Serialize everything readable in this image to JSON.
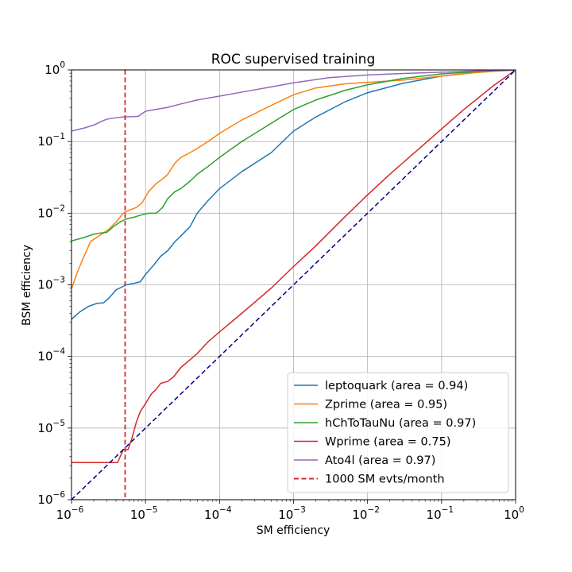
{
  "chart_data": {
    "type": "line",
    "title": "ROC supervised training",
    "xlabel": "SM efficiency",
    "ylabel": "BSM efficiency",
    "xscale": "log",
    "yscale": "log",
    "xlim": [
      1e-06,
      1
    ],
    "ylim": [
      1e-06,
      1
    ],
    "grid": true,
    "legend_position": "lower-right",
    "xticks": [
      {
        "base": "10",
        "exp": "−6",
        "value": 1e-06
      },
      {
        "base": "10",
        "exp": "−5",
        "value": 1e-05
      },
      {
        "base": "10",
        "exp": "−4",
        "value": 0.0001
      },
      {
        "base": "10",
        "exp": "−3",
        "value": 0.001
      },
      {
        "base": "10",
        "exp": "−2",
        "value": 0.01
      },
      {
        "base": "10",
        "exp": "−1",
        "value": 0.1
      },
      {
        "base": "10",
        "exp": "0",
        "value": 1
      }
    ],
    "yticks": [
      {
        "base": "10",
        "exp": "−6",
        "value": 1e-06
      },
      {
        "base": "10",
        "exp": "−5",
        "value": 1e-05
      },
      {
        "base": "10",
        "exp": "−4",
        "value": 0.0001
      },
      {
        "base": "10",
        "exp": "−3",
        "value": 0.001
      },
      {
        "base": "10",
        "exp": "−2",
        "value": 0.01
      },
      {
        "base": "10",
        "exp": "−1",
        "value": 0.1
      },
      {
        "base": "10",
        "exp": "0",
        "value": 1
      }
    ],
    "series": [
      {
        "name": "leptoquark (area = 0.94)",
        "color": "#1f77b4",
        "style": "solid",
        "points": [
          [
            1e-06,
            0.00033
          ],
          [
            1.3e-06,
            0.00042
          ],
          [
            1.7e-06,
            0.0005
          ],
          [
            2.2e-06,
            0.00055
          ],
          [
            2.7e-06,
            0.00056
          ],
          [
            3.2e-06,
            0.00065
          ],
          [
            4e-06,
            0.00085
          ],
          [
            5e-06,
            0.00095
          ],
          [
            5.5e-06,
            0.001
          ],
          [
            7e-06,
            0.00105
          ],
          [
            8.5e-06,
            0.0011
          ],
          [
            1e-05,
            0.0014
          ],
          [
            1.3e-05,
            0.0019
          ],
          [
            1.6e-05,
            0.0025
          ],
          [
            2e-05,
            0.003
          ],
          [
            2.5e-05,
            0.004
          ],
          [
            3e-05,
            0.0048
          ],
          [
            4e-05,
            0.0065
          ],
          [
            5e-05,
            0.01
          ],
          [
            7e-05,
            0.015
          ],
          [
            0.0001,
            0.022
          ],
          [
            0.0002,
            0.038
          ],
          [
            0.0005,
            0.07
          ],
          [
            0.001,
            0.14
          ],
          [
            0.002,
            0.22
          ],
          [
            0.005,
            0.36
          ],
          [
            0.01,
            0.48
          ],
          [
            0.03,
            0.65
          ],
          [
            0.1,
            0.82
          ],
          [
            0.3,
            0.93
          ],
          [
            1,
            1
          ]
        ]
      },
      {
        "name": "Zprime (area = 0.95)",
        "color": "#ff7f0e",
        "style": "solid",
        "points": [
          [
            1e-06,
            0.00088
          ],
          [
            1.2e-06,
            0.0015
          ],
          [
            1.4e-06,
            0.0022
          ],
          [
            1.6e-06,
            0.003
          ],
          [
            1.8e-06,
            0.004
          ],
          [
            2.2e-06,
            0.0046
          ],
          [
            2.7e-06,
            0.0053
          ],
          [
            3.2e-06,
            0.006
          ],
          [
            4e-06,
            0.0075
          ],
          [
            5e-06,
            0.01
          ],
          [
            6e-06,
            0.011
          ],
          [
            7.5e-06,
            0.012
          ],
          [
            9e-06,
            0.014
          ],
          [
            1.1e-05,
            0.02
          ],
          [
            1.4e-05,
            0.026
          ],
          [
            1.7e-05,
            0.03
          ],
          [
            2e-05,
            0.035
          ],
          [
            2.5e-05,
            0.05
          ],
          [
            3e-05,
            0.06
          ],
          [
            4e-05,
            0.07
          ],
          [
            5e-05,
            0.08
          ],
          [
            7e-05,
            0.1
          ],
          [
            0.0001,
            0.13
          ],
          [
            0.0002,
            0.2
          ],
          [
            0.0005,
            0.32
          ],
          [
            0.001,
            0.45
          ],
          [
            0.002,
            0.56
          ],
          [
            0.005,
            0.64
          ],
          [
            0.01,
            0.67
          ],
          [
            0.03,
            0.72
          ],
          [
            0.1,
            0.82
          ],
          [
            0.3,
            0.92
          ],
          [
            1,
            1
          ]
        ]
      },
      {
        "name": "hChToTauNu (area = 0.97)",
        "color": "#2ca02c",
        "style": "solid",
        "points": [
          [
            1e-06,
            0.0041
          ],
          [
            1.5e-06,
            0.0046
          ],
          [
            2e-06,
            0.0051
          ],
          [
            2.5e-06,
            0.0053
          ],
          [
            3e-06,
            0.0054
          ],
          [
            3.7e-06,
            0.0065
          ],
          [
            4.5e-06,
            0.0075
          ],
          [
            5.5e-06,
            0.0083
          ],
          [
            7e-06,
            0.0088
          ],
          [
            9e-06,
            0.0095
          ],
          [
            1.1e-05,
            0.01
          ],
          [
            1.4e-05,
            0.01
          ],
          [
            1.7e-05,
            0.012
          ],
          [
            2e-05,
            0.016
          ],
          [
            2.5e-05,
            0.02
          ],
          [
            3e-05,
            0.022
          ],
          [
            4e-05,
            0.028
          ],
          [
            5e-05,
            0.035
          ],
          [
            7e-05,
            0.045
          ],
          [
            0.0001,
            0.06
          ],
          [
            0.0002,
            0.1
          ],
          [
            0.0005,
            0.18
          ],
          [
            0.001,
            0.28
          ],
          [
            0.002,
            0.38
          ],
          [
            0.005,
            0.52
          ],
          [
            0.01,
            0.62
          ],
          [
            0.03,
            0.76
          ],
          [
            0.1,
            0.88
          ],
          [
            0.3,
            0.95
          ],
          [
            1,
            1
          ]
        ]
      },
      {
        "name": "Wprime (area = 0.75)",
        "color": "#d62728",
        "style": "solid",
        "points": [
          [
            1e-06,
            3.3e-06
          ],
          [
            2e-06,
            3.3e-06
          ],
          [
            3e-06,
            3.3e-06
          ],
          [
            4.2e-06,
            3.3e-06
          ],
          [
            5e-06,
            5e-06
          ],
          [
            5.8e-06,
            5e-06
          ],
          [
            6.5e-06,
            7e-06
          ],
          [
            7.5e-06,
            1.2e-05
          ],
          [
            8.5e-06,
            1.7e-05
          ],
          [
            1e-05,
            2.2e-05
          ],
          [
            1.2e-05,
            3e-05
          ],
          [
            1.4e-05,
            3.5e-05
          ],
          [
            1.6e-05,
            4.2e-05
          ],
          [
            2e-05,
            4.5e-05
          ],
          [
            2.4e-05,
            5.2e-05
          ],
          [
            3e-05,
            7e-05
          ],
          [
            4e-05,
            9e-05
          ],
          [
            5e-05,
            0.00011
          ],
          [
            7e-05,
            0.00016
          ],
          [
            0.0001,
            0.00022
          ],
          [
            0.0002,
            0.0004
          ],
          [
            0.0005,
            0.0009
          ],
          [
            0.001,
            0.0018
          ],
          [
            0.002,
            0.0035
          ],
          [
            0.005,
            0.009
          ],
          [
            0.01,
            0.018
          ],
          [
            0.02,
            0.035
          ],
          [
            0.05,
            0.08
          ],
          [
            0.1,
            0.15
          ],
          [
            0.2,
            0.28
          ],
          [
            0.5,
            0.6
          ],
          [
            1,
            1
          ]
        ]
      },
      {
        "name": "Ato4l (area = 0.97)",
        "color": "#9467bd",
        "style": "solid",
        "points": [
          [
            1e-06,
            0.14
          ],
          [
            1.5e-06,
            0.155
          ],
          [
            2e-06,
            0.17
          ],
          [
            2.5e-06,
            0.19
          ],
          [
            3e-06,
            0.205
          ],
          [
            4e-06,
            0.215
          ],
          [
            5e-06,
            0.22
          ],
          [
            6e-06,
            0.222
          ],
          [
            8e-06,
            0.225
          ],
          [
            1e-05,
            0.265
          ],
          [
            1.5e-05,
            0.285
          ],
          [
            2e-05,
            0.3
          ],
          [
            3e-05,
            0.335
          ],
          [
            5e-05,
            0.38
          ],
          [
            0.0001,
            0.43
          ],
          [
            0.0002,
            0.49
          ],
          [
            0.0005,
            0.58
          ],
          [
            0.001,
            0.66
          ],
          [
            0.003,
            0.78
          ],
          [
            0.01,
            0.85
          ],
          [
            0.03,
            0.89
          ],
          [
            0.1,
            0.93
          ],
          [
            0.3,
            0.97
          ],
          [
            1,
            1
          ]
        ]
      },
      {
        "name": "",
        "color": "#000080",
        "style": "dashed",
        "points": [
          [
            1e-06,
            1e-06
          ],
          [
            1,
            1
          ]
        ]
      }
    ],
    "vline": {
      "name": "1000 SM evts/month",
      "x": 5.3e-06,
      "color": "#d62728",
      "style": "dashed"
    }
  }
}
